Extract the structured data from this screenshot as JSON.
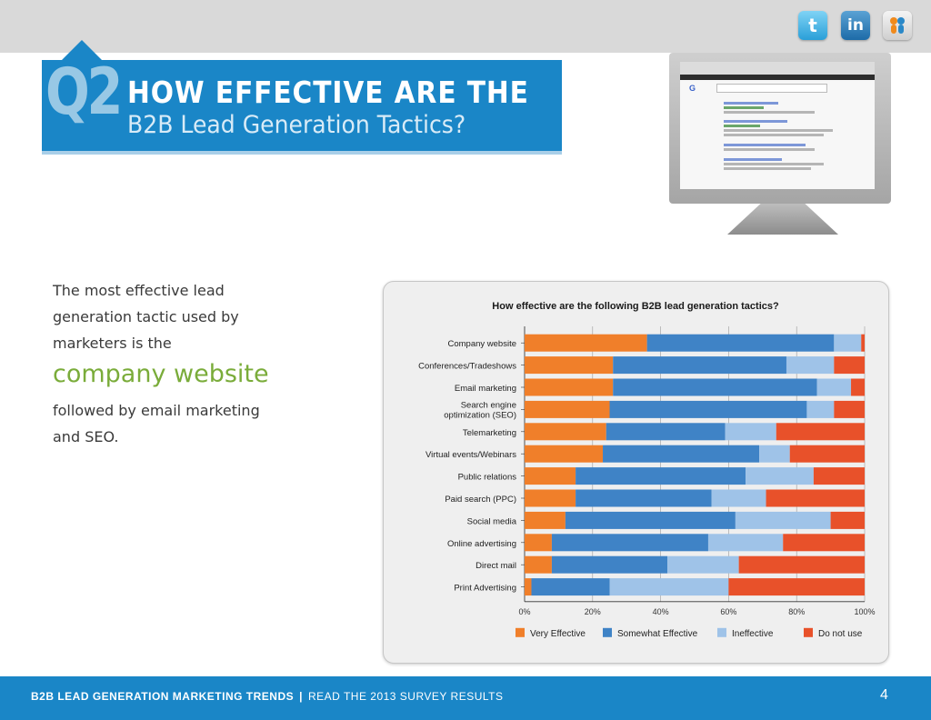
{
  "header": {
    "social": [
      {
        "name": "twitter",
        "glyph": "t"
      },
      {
        "name": "linkedin",
        "glyph": "in"
      },
      {
        "name": "slideshare",
        "glyph": "ss"
      }
    ]
  },
  "section": {
    "number": "Q2",
    "title_line1": "HOW EFFECTIVE ARE THE",
    "title_line2": "B2B Lead Generation Tactics?",
    "accent_color": "#1a86c7"
  },
  "intro": {
    "line1": "The most effective lead",
    "line2": "generation tactic used by",
    "line3": "marketers is the",
    "highlight": "company website",
    "line4": "followed by email marketing",
    "line5": "and SEO.",
    "highlight_color": "#7aac3a"
  },
  "chart_data": {
    "type": "bar",
    "orientation": "horizontal-stacked-100",
    "title": "How effective are the following B2B lead generation tactics?",
    "categories": [
      "Company website",
      "Conferences/Tradeshows",
      "Email marketing",
      "Search engine optimization (SEO)",
      "Telemarketing",
      "Virtual events/Webinars",
      "Public relations",
      "Paid search (PPC)",
      "Social media",
      "Online advertising",
      "Direct mail",
      "Print Advertising"
    ],
    "category_lines": [
      [
        "Company website"
      ],
      [
        "Conferences/Tradeshows"
      ],
      [
        "Email marketing"
      ],
      [
        "Search engine",
        "optimization (SEO)"
      ],
      [
        "Telemarketing"
      ],
      [
        "Virtual events/Webinars"
      ],
      [
        "Public relations"
      ],
      [
        "Paid search (PPC)"
      ],
      [
        "Social media"
      ],
      [
        "Online advertising"
      ],
      [
        "Direct mail"
      ],
      [
        "Print Advertising"
      ]
    ],
    "series": [
      {
        "name": "Very Effective",
        "color": "#f07f2a",
        "values": [
          36,
          26,
          26,
          25,
          24,
          23,
          15,
          15,
          12,
          8,
          8,
          2
        ]
      },
      {
        "name": "Somewhat Effective",
        "color": "#3f83c6",
        "values": [
          55,
          51,
          60,
          58,
          35,
          46,
          50,
          40,
          50,
          46,
          34,
          23
        ]
      },
      {
        "name": "Ineffective",
        "color": "#9fc3e8",
        "values": [
          8,
          14,
          10,
          8,
          15,
          9,
          20,
          16,
          28,
          22,
          21,
          35
        ]
      },
      {
        "name": "Do not use",
        "color": "#e8512a",
        "values": [
          1,
          9,
          4,
          9,
          26,
          22,
          15,
          29,
          10,
          24,
          37,
          40
        ]
      }
    ],
    "xlim": [
      0,
      100
    ],
    "x_ticks": [
      "0%",
      "20%",
      "40%",
      "60%",
      "80%",
      "100%"
    ],
    "legend": "bottom"
  },
  "footer": {
    "brand": "B2B LEAD GENERATION MARKETING TRENDS",
    "separator": "|",
    "tagline": "READ THE 2013 SURVEY RESULTS",
    "page_number": "4"
  }
}
